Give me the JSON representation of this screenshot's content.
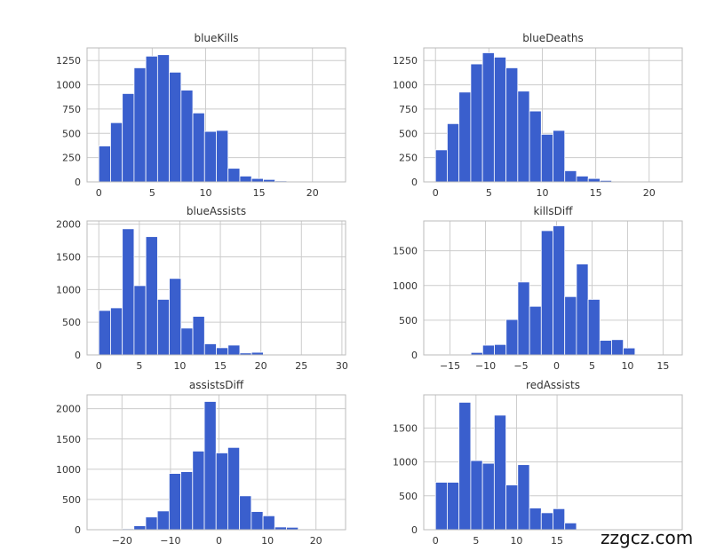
{
  "colors": {
    "bar": "#3a5fcd",
    "grid": "#cccccc",
    "axis": "#bbbbbb",
    "text": "#333333"
  },
  "chart_data": [
    {
      "type": "bar",
      "title": "blueKills",
      "xlim": [
        -1.1,
        23.1
      ],
      "ylim": [
        0,
        1380
      ],
      "xticks": [
        0,
        5,
        10,
        15,
        20
      ],
      "yticks": [
        0,
        250,
        500,
        750,
        1000,
        1250
      ],
      "bin_start": 0,
      "bin_width": 1.1,
      "values": [
        370,
        610,
        910,
        1175,
        1295,
        1310,
        1130,
        945,
        710,
        520,
        530,
        140,
        60,
        35,
        25,
        10,
        3,
        2,
        1,
        1
      ]
    },
    {
      "type": "bar",
      "title": "blueDeaths",
      "xlim": [
        -1.1,
        23.1
      ],
      "ylim": [
        0,
        1380
      ],
      "xticks": [
        0,
        5,
        10,
        15,
        20
      ],
      "yticks": [
        0,
        250,
        500,
        750,
        1000,
        1250
      ],
      "bin_start": 0,
      "bin_width": 1.1,
      "values": [
        330,
        600,
        925,
        1215,
        1330,
        1285,
        1175,
        935,
        730,
        490,
        530,
        115,
        60,
        35,
        15,
        5,
        3,
        2,
        1,
        1
      ]
    },
    {
      "type": "bar",
      "title": "blueAssists",
      "xlim": [
        -1.45,
        30.45
      ],
      "ylim": [
        0,
        2050
      ],
      "xticks": [
        0,
        5,
        10,
        15,
        20,
        25,
        30
      ],
      "yticks": [
        0,
        500,
        1000,
        1500,
        2000
      ],
      "bin_start": 0,
      "bin_width": 1.45,
      "values": [
        680,
        720,
        1930,
        1060,
        1810,
        850,
        1170,
        410,
        590,
        170,
        110,
        150,
        30,
        40,
        5,
        3,
        2,
        1,
        1,
        1
      ]
    },
    {
      "type": "bar",
      "title": "killsDiff",
      "xlim": [
        -18.7,
        17.7
      ],
      "ylim": [
        0,
        1930
      ],
      "xticks": [
        -15,
        -10,
        -5,
        0,
        5,
        10,
        15
      ],
      "yticks": [
        0,
        500,
        1000,
        1500
      ],
      "bin_start": -17,
      "bin_width": 1.65,
      "values": [
        2,
        5,
        10,
        35,
        140,
        150,
        510,
        1050,
        700,
        1790,
        1860,
        840,
        1310,
        800,
        210,
        220,
        100,
        10,
        5,
        2
      ]
    },
    {
      "type": "bar",
      "title": "assistsDiff",
      "xlim": [
        -27.2,
        26.1
      ],
      "ylim": [
        0,
        2230
      ],
      "xticks": [
        -20,
        -10,
        0,
        10,
        20
      ],
      "yticks": [
        0,
        500,
        1000,
        1500,
        2000
      ],
      "bin_start": -24.8,
      "bin_width": 2.42,
      "values": [
        3,
        5,
        15,
        65,
        210,
        310,
        930,
        960,
        1300,
        2120,
        1270,
        1360,
        560,
        300,
        230,
        45,
        40,
        10,
        3,
        2
      ]
    },
    {
      "type": "bar",
      "title": "redAssists",
      "xlim": [
        -1.45,
        30.45
      ],
      "ylim": [
        0,
        1990
      ],
      "xticks": [
        0,
        5,
        10,
        15
      ],
      "yticks": [
        0,
        500,
        1000,
        1500
      ],
      "bin_start": 0,
      "bin_width": 1.45,
      "values": [
        700,
        700,
        1880,
        1020,
        980,
        1690,
        660,
        960,
        320,
        250,
        310,
        100
      ]
    }
  ],
  "watermark": "zzgcz.com"
}
